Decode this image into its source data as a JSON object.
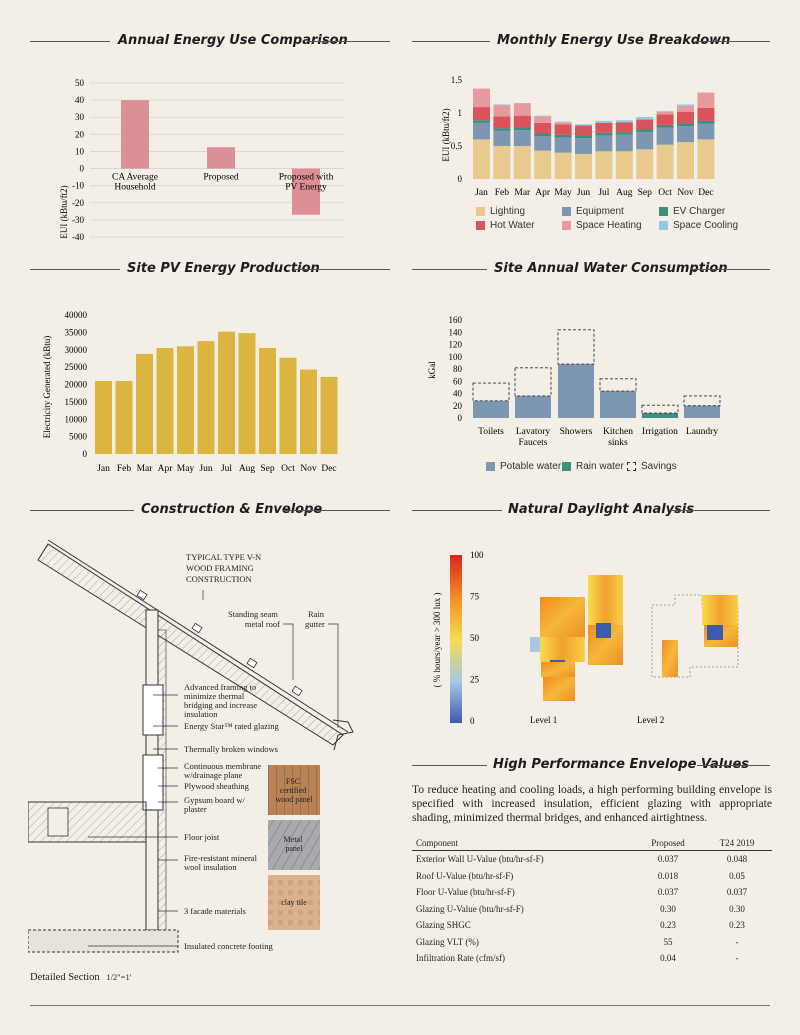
{
  "sections": {
    "annual": "Annual Energy Use Comparison",
    "monthly": "Monthly Energy Use Breakdown",
    "pv": "Site PV Energy Production",
    "water": "Site Annual Water Consumption",
    "construction": "Construction & Envelope",
    "daylight": "Natural Daylight Analysis",
    "envelope": "High Performance Envelope Values"
  },
  "colors": {
    "annual_bar": "#dc8f96",
    "lighting": "#e8c98e",
    "equipment": "#7d97b2",
    "ev": "#3e8e7e",
    "hot_water": "#d9545a",
    "space_heating": "#e69aa0",
    "space_cooling": "#8ecae6",
    "pv": "#dcb540",
    "potable": "#7d97b2",
    "rain": "#3e8e7e"
  },
  "chart_data": [
    {
      "type": "bar",
      "title": "Annual Energy Use Comparison",
      "ylabel": "EUI (kBtu/ft2)",
      "ylim": [
        -40,
        50
      ],
      "yticks": [
        50,
        40,
        30,
        20,
        10,
        0,
        -10,
        -20,
        -30,
        -40
      ],
      "categories": [
        "CA Average Household",
        "Proposed",
        "Proposed with PV Energy"
      ],
      "category_labels": [
        [
          "CA Average",
          "Household"
        ],
        [
          "Proposed"
        ],
        [
          "Proposed with",
          "PV Energy"
        ]
      ],
      "values": [
        40,
        12.5,
        -27
      ]
    },
    {
      "type": "bar",
      "stacked": true,
      "title": "Monthly Energy Use Breakdown",
      "ylabel": "EUI (kBtu/ft2)",
      "ylim": [
        0,
        1.5
      ],
      "yticks": [
        0,
        0.5,
        1,
        1.5
      ],
      "categories": [
        "Jan",
        "Feb",
        "Mar",
        "Apr",
        "May",
        "Jun",
        "Jul",
        "Aug",
        "Sep",
        "Oct",
        "Nov",
        "Dec"
      ],
      "series": [
        {
          "name": "Lighting",
          "values": [
            0.6,
            0.5,
            0.5,
            0.43,
            0.4,
            0.38,
            0.42,
            0.42,
            0.45,
            0.52,
            0.56,
            0.6
          ]
        },
        {
          "name": "Equipment",
          "values": [
            0.25,
            0.23,
            0.24,
            0.22,
            0.23,
            0.24,
            0.24,
            0.25,
            0.26,
            0.26,
            0.24,
            0.24
          ]
        },
        {
          "name": "EV Charger",
          "values": [
            0.04,
            0.04,
            0.04,
            0.04,
            0.04,
            0.04,
            0.04,
            0.04,
            0.04,
            0.04,
            0.04,
            0.04
          ]
        },
        {
          "name": "Hot Water",
          "values": [
            0.2,
            0.18,
            0.18,
            0.16,
            0.16,
            0.15,
            0.15,
            0.15,
            0.15,
            0.16,
            0.18,
            0.2
          ]
        },
        {
          "name": "Space Heating",
          "values": [
            0.28,
            0.17,
            0.19,
            0.1,
            0.03,
            0.0,
            0.0,
            0.0,
            0.01,
            0.04,
            0.09,
            0.23
          ]
        },
        {
          "name": "Space Cooling",
          "values": [
            0.0,
            0.01,
            0.0,
            0.01,
            0.01,
            0.02,
            0.03,
            0.03,
            0.03,
            0.01,
            0.02,
            0.0
          ]
        }
      ],
      "legend_position": "bottom"
    },
    {
      "type": "bar",
      "title": "Site PV Energy Production",
      "ylabel": "Electricity Generated (kBtu)",
      "ylim": [
        0,
        40000
      ],
      "yticks": [
        0,
        5000,
        10000,
        15000,
        20000,
        25000,
        30000,
        35000,
        40000
      ],
      "categories": [
        "Jan",
        "Feb",
        "Mar",
        "Apr",
        "May",
        "Jun",
        "Jul",
        "Aug",
        "Sep",
        "Oct",
        "Nov",
        "Dec"
      ],
      "values": [
        21000,
        21000,
        28800,
        30500,
        31000,
        32500,
        35200,
        34800,
        30500,
        27700,
        24300,
        22200
      ]
    },
    {
      "type": "bar",
      "stacked": true,
      "title": "Site Annual Water Consumption",
      "ylabel": "kGal",
      "ylim": [
        0,
        160
      ],
      "yticks": [
        0,
        20,
        40,
        60,
        80,
        100,
        120,
        140,
        160
      ],
      "categories": [
        "Toilets",
        "Lavatory Faucets",
        "Showers",
        "Kitchen sinks",
        "Irrigation",
        "Laundry"
      ],
      "category_labels": [
        [
          "Toilets"
        ],
        [
          "Lavatory",
          "Faucets"
        ],
        [
          "Showers"
        ],
        [
          "Kitchen",
          "sinks"
        ],
        [
          "Irrigation"
        ],
        [
          "Laundry"
        ]
      ],
      "series": [
        {
          "name": "Potable water",
          "values": [
            28,
            36,
            88,
            44,
            0,
            20
          ]
        },
        {
          "name": "Rain water",
          "values": [
            0,
            0,
            0,
            0,
            8,
            0
          ]
        },
        {
          "name": "Savings",
          "values": [
            29,
            46,
            56,
            20,
            13,
            16
          ]
        }
      ],
      "legend_position": "bottom"
    },
    {
      "type": "heatmap",
      "title": "Natural Daylight Analysis",
      "colorbar_label": "( % hours/year > 300 lux )",
      "colorbar_ticks": [
        100,
        75,
        50,
        25,
        0
      ],
      "panels": [
        "Level 1",
        "Level 2"
      ]
    }
  ],
  "construction": {
    "heading": [
      "TYPICAL TYPE V-N",
      "WOOD FRAMING",
      "CONSTRUCTION"
    ],
    "roof": [
      "Standing seam",
      "metal roof"
    ],
    "gutter": [
      "Rain",
      "gutter"
    ],
    "advanced": [
      "Advanced framing to",
      "minimize thermal",
      "bridging and increase",
      "insulation"
    ],
    "glazing": "Energy Star™ rated glazing",
    "windows": "Thermally broken windows",
    "membrane": [
      "Continuous membrane",
      "w/drainage plane"
    ],
    "plywood": "Plywood sheathing",
    "gypsum": [
      "Gypsum board w/",
      "plaster"
    ],
    "joist": "Floor joist",
    "wool": [
      "Fire-resistant mineral",
      "wool insulation"
    ],
    "facade": "3 facade materials",
    "footing": "Insulated concrete footing",
    "fsc": [
      "FSC",
      "certified",
      "wood panel"
    ],
    "metal": [
      "Metal",
      "panel"
    ],
    "clay": "clay tile",
    "caption": "Detailed Section",
    "scale": "1/2\"=1'"
  },
  "envelope": {
    "intro": "To reduce heating and cooling loads, a high performing building envelope is specified with increased insulation, efficient glazing with appropriate shading, minimized thermal bridges, and enhanced airtightness.",
    "headers": [
      "Component",
      "Proposed",
      "T24 2019"
    ],
    "rows": [
      [
        "Exterior Wall U-Value (btu/hr-sf-F)",
        "0.037",
        "0.048"
      ],
      [
        "Roof U-Value (btu/hr-sf-F)",
        "0.018",
        "0.05"
      ],
      [
        "Floor U-Value (btu/hr-sf-F)",
        "0.037",
        "0.037"
      ],
      [
        "Glazing U-Value (btu/hr-sf-F)",
        "0.30",
        "0.30"
      ],
      [
        "Glazing SHGC",
        "0.23",
        "0.23"
      ],
      [
        "Glazing VLT (%)",
        "55",
        "-"
      ],
      [
        "Infiltration Rate (cfm/sf)",
        "0.04",
        "-"
      ]
    ]
  }
}
